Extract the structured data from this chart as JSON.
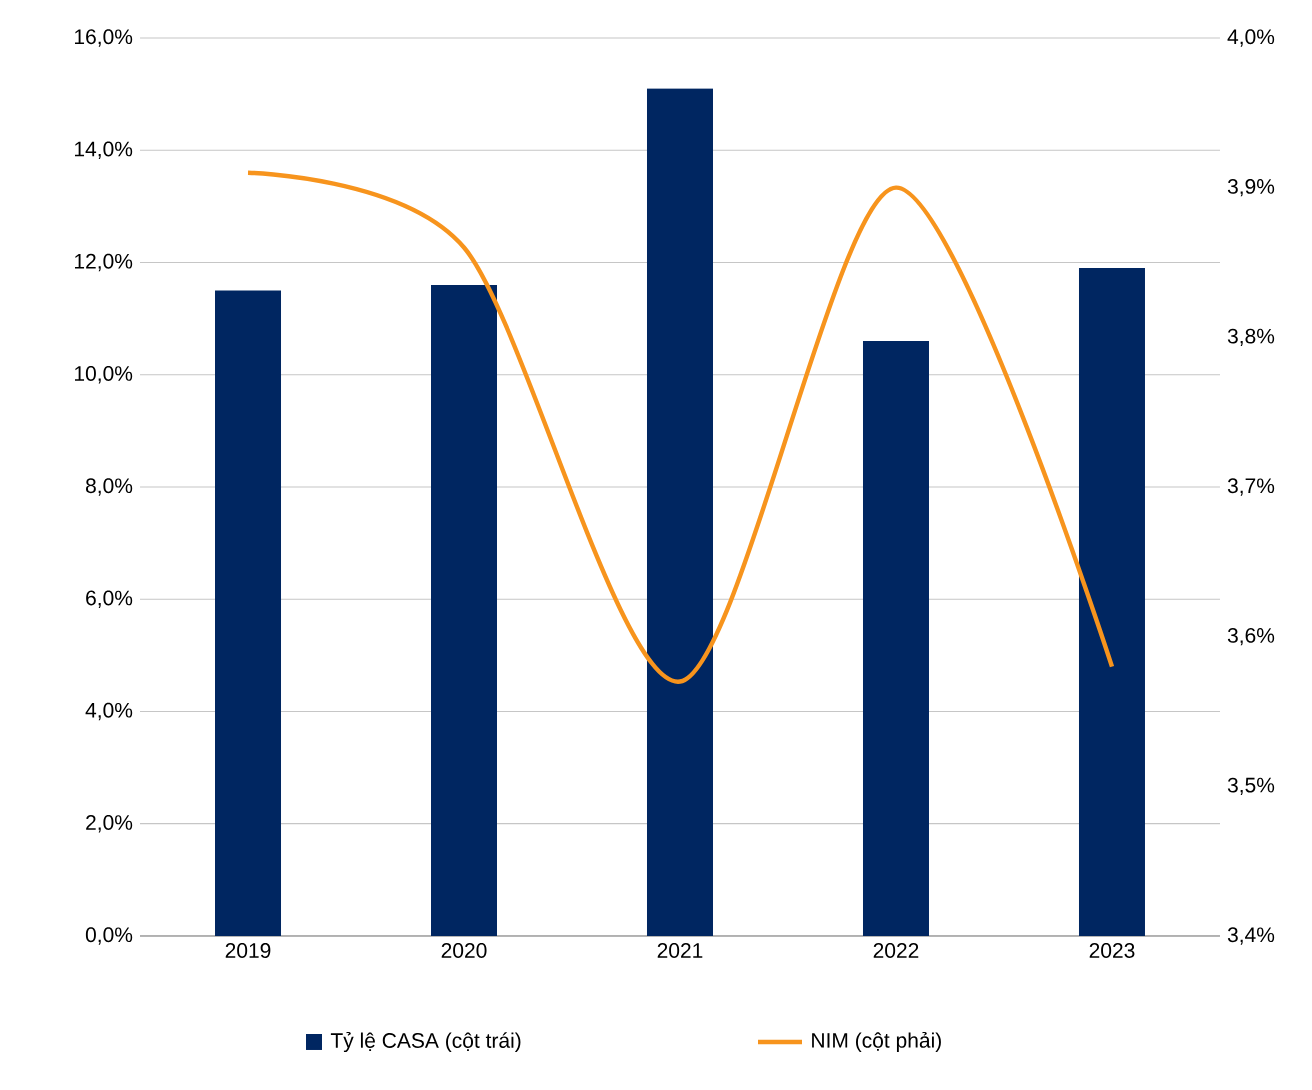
{
  "chart_data": {
    "type": "bar",
    "categories": [
      "2019",
      "2020",
      "2021",
      "2022",
      "2023"
    ],
    "series": [
      {
        "name": "Tỷ lệ CASA (cột trái)",
        "color": "#002661",
        "values": [
          11.5,
          11.6,
          15.1,
          10.6,
          11.9
        ]
      },
      {
        "name": "NIM (cột phải)",
        "type": "line",
        "axis": "y2",
        "color": "#f7941d",
        "values": [
          3.91,
          3.86,
          3.57,
          3.9,
          3.58
        ]
      }
    ],
    "ylim": [
      0,
      16
    ],
    "yticks": [
      {
        "value": 0,
        "label": "0,0%"
      },
      {
        "value": 2,
        "label": "2,0%"
      },
      {
        "value": 4,
        "label": "4,0%"
      },
      {
        "value": 6,
        "label": "6,0%"
      },
      {
        "value": 8,
        "label": "8,0%"
      },
      {
        "value": 10,
        "label": "10,0%"
      },
      {
        "value": 12,
        "label": "12,0%"
      },
      {
        "value": 14,
        "label": "14,0%"
      },
      {
        "value": 16,
        "label": "16,0%"
      }
    ],
    "y2lim": [
      3.4,
      4.0
    ],
    "y2ticks": [
      {
        "value": 3.4,
        "label": "3,4%"
      },
      {
        "value": 3.5,
        "label": "3,5%"
      },
      {
        "value": 3.6,
        "label": "3,6%"
      },
      {
        "value": 3.7,
        "label": "3,7%"
      },
      {
        "value": 3.8,
        "label": "3,8%"
      },
      {
        "value": 3.9,
        "label": "3,9%"
      },
      {
        "value": 4.0,
        "label": "4,0%"
      }
    ],
    "grid": "y",
    "legend": "bottom",
    "marker": "none"
  }
}
